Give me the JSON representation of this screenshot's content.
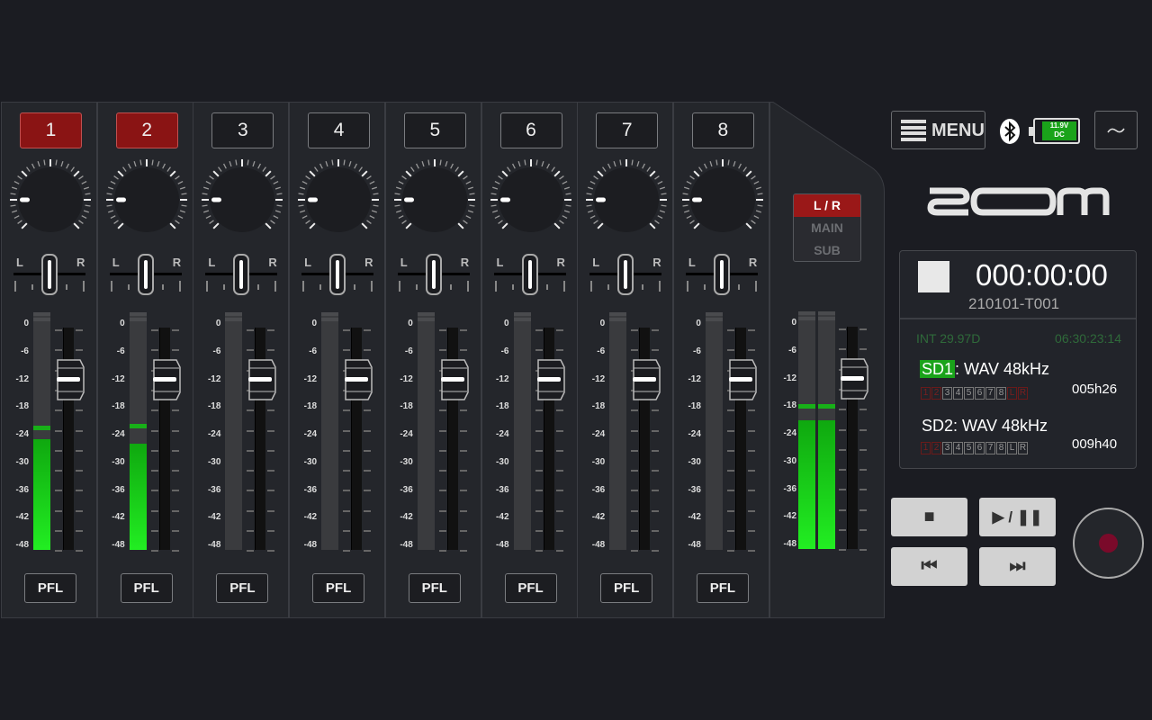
{
  "channels": [
    {
      "label": "1",
      "armed": true,
      "pan": "C",
      "fader_db": -12,
      "meter_db": -24,
      "peak_db": -22.5
    },
    {
      "label": "2",
      "armed": true,
      "pan": "C",
      "fader_db": -12,
      "meter_db": -25,
      "peak_db": -22
    },
    {
      "label": "3",
      "armed": false,
      "pan": "C",
      "fader_db": -12,
      "meter_db": -48,
      "peak_db": null
    },
    {
      "label": "4",
      "armed": false,
      "pan": "C",
      "fader_db": -12,
      "meter_db": -48,
      "peak_db": null
    },
    {
      "label": "5",
      "armed": false,
      "pan": "C",
      "fader_db": -12,
      "meter_db": -48,
      "peak_db": null
    },
    {
      "label": "6",
      "armed": false,
      "pan": "C",
      "fader_db": -12,
      "meter_db": -48,
      "peak_db": null
    },
    {
      "label": "7",
      "armed": false,
      "pan": "C",
      "fader_db": -12,
      "meter_db": -48,
      "peak_db": null
    },
    {
      "label": "8",
      "armed": false,
      "pan": "C",
      "fader_db": -12,
      "meter_db": -48,
      "peak_db": null
    }
  ],
  "pan_labels": {
    "left": "L",
    "right": "R"
  },
  "scale": [
    "0",
    "-6",
    "-12",
    "-18",
    "-24",
    "-30",
    "-36",
    "-42",
    "-48"
  ],
  "pfl_label": "PFL",
  "master": {
    "bus_options": [
      "L / R",
      "MAIN",
      "SUB"
    ],
    "selected": "L / R",
    "fader_db": -12,
    "meters": [
      {
        "meter_db": -20,
        "peak_db": -18
      },
      {
        "meter_db": -20,
        "peak_db": -18
      }
    ]
  },
  "header": {
    "menu_label": "MENU",
    "battery": {
      "line1": "11.9V",
      "line2": "DC"
    },
    "icons": [
      "menu-icon",
      "bluetooth-icon",
      "battery-icon",
      "waveform-icon"
    ],
    "logo": "ZOOM"
  },
  "status": {
    "counter": "000:00:00",
    "take": "210101-T001",
    "timecode_mode": "INT 29.97D",
    "timecode": "06:30:23:14",
    "sd1": {
      "name": "SD1",
      "format": ": WAV 48kHz",
      "remaining": "005h26",
      "tracks": [
        [
          "1",
          "red"
        ],
        [
          "2",
          "red"
        ],
        [
          "3",
          ""
        ],
        [
          "4",
          ""
        ],
        [
          "5",
          ""
        ],
        [
          "6",
          ""
        ],
        [
          "7",
          ""
        ],
        [
          "8",
          ""
        ],
        [
          "L",
          "red"
        ],
        [
          "R",
          "red"
        ]
      ]
    },
    "sd2": {
      "name": "SD2",
      "format": ": WAV 48kHz",
      "remaining": "009h40",
      "tracks": [
        [
          "1",
          "red"
        ],
        [
          "2",
          "red"
        ],
        [
          "3",
          ""
        ],
        [
          "4",
          ""
        ],
        [
          "5",
          ""
        ],
        [
          "6",
          ""
        ],
        [
          "7",
          ""
        ],
        [
          "8",
          ""
        ],
        [
          "L",
          ""
        ],
        [
          "R",
          ""
        ]
      ]
    }
  },
  "transport": {
    "stop": "■",
    "play_pause": "▶ / ❚❚",
    "rewind": "⏮",
    "forward": "⏭"
  },
  "colors": {
    "armed": "#8a1414",
    "meter": "#22ee22",
    "record": "#7a0a2a",
    "sd_active": "#1aa31a"
  }
}
